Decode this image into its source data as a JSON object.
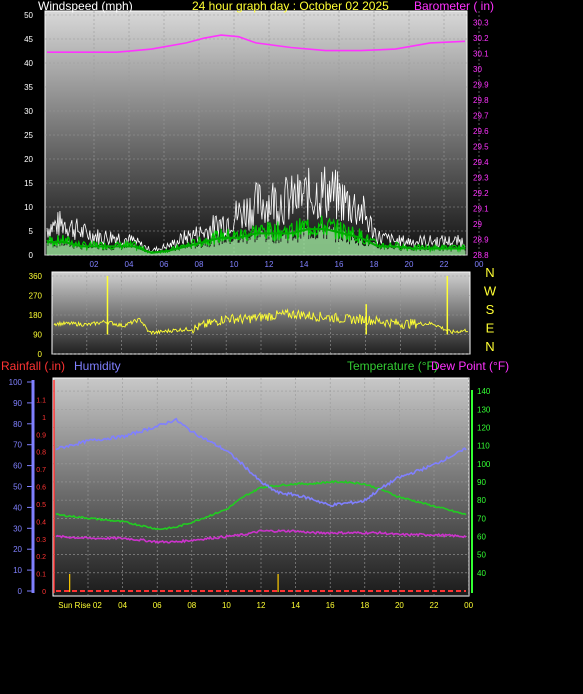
{
  "header": {
    "wind_title": "Windspeed (mph)",
    "date_title": "24 hour graph day : October 02 2025",
    "baro_title": "Barometer ( in)"
  },
  "rain_header": {
    "rain_label": "Rainfall (.in)",
    "humidity_label": "Humidity",
    "temp_label": "Temperature (°F)",
    "dew_label": "Dew Point (°F)"
  },
  "colors": {
    "background": "#000000",
    "wind": "#ffffff",
    "gust_avg": "#00c800",
    "wind_fill": "#a0e8a0",
    "barometer": "#ff33ff",
    "direction": "#ffff33",
    "humidity": "#8080ff",
    "temperature": "#22cc22",
    "dewpoint": "#cc33cc",
    "rain": "#ff3333",
    "axis_green": "#33ff33",
    "axis_blue": "#8080ff"
  },
  "chart_data": [
    {
      "type": "line",
      "name": "wind-barometer",
      "x_ticks": [
        "02",
        "04",
        "06",
        "08",
        "10",
        "12",
        "14",
        "16",
        "18",
        "20",
        "22",
        "00"
      ],
      "y_left_ticks": [
        "0",
        "5",
        "10",
        "15",
        "20",
        "25",
        "30",
        "35",
        "40",
        "45",
        "50"
      ],
      "ylim_left": [
        0,
        50
      ],
      "y_right_ticks": [
        "28.8",
        "28.9",
        "29",
        "29.1",
        "29.2",
        "29.3",
        "29.4",
        "29.5",
        "29.6",
        "29.7",
        "29.8",
        "29.9",
        "30",
        "30.1",
        "30.2",
        "30.3"
      ],
      "ylim_right": [
        28.8,
        30.35
      ],
      "barometer": [
        [
          0,
          30.11
        ],
        [
          2,
          30.11
        ],
        [
          4,
          30.11
        ],
        [
          6,
          30.13
        ],
        [
          8,
          30.17
        ],
        [
          9,
          30.2
        ],
        [
          10,
          30.22
        ],
        [
          11,
          30.21
        ],
        [
          12,
          30.17
        ],
        [
          14,
          30.14
        ],
        [
          16,
          30.12
        ],
        [
          18,
          30.12
        ],
        [
          20,
          30.13
        ],
        [
          22,
          30.17
        ],
        [
          24,
          30.18
        ]
      ],
      "wind_max": [
        [
          0,
          6
        ],
        [
          1,
          7
        ],
        [
          2,
          5
        ],
        [
          3,
          4
        ],
        [
          4,
          4
        ],
        [
          5,
          3
        ],
        [
          6,
          1
        ],
        [
          7,
          2
        ],
        [
          8,
          4
        ],
        [
          9,
          5
        ],
        [
          10,
          7
        ],
        [
          11,
          9
        ],
        [
          12,
          11
        ],
        [
          13,
          12
        ],
        [
          14,
          12
        ],
        [
          15,
          13
        ],
        [
          16,
          14
        ],
        [
          17,
          12
        ],
        [
          18,
          10
        ],
        [
          19,
          4
        ],
        [
          20,
          3
        ],
        [
          21,
          3
        ],
        [
          22,
          3
        ],
        [
          23,
          3
        ],
        [
          24,
          3
        ]
      ],
      "wind_avg": [
        [
          0,
          3
        ],
        [
          1,
          3
        ],
        [
          2,
          2
        ],
        [
          3,
          2
        ],
        [
          4,
          2
        ],
        [
          5,
          2
        ],
        [
          6,
          0.5
        ],
        [
          7,
          1
        ],
        [
          8,
          2
        ],
        [
          9,
          3
        ],
        [
          10,
          4
        ],
        [
          11,
          4
        ],
        [
          12,
          5
        ],
        [
          13,
          5
        ],
        [
          14,
          5
        ],
        [
          15,
          6
        ],
        [
          16,
          6
        ],
        [
          17,
          5
        ],
        [
          18,
          4
        ],
        [
          19,
          2
        ],
        [
          20,
          2
        ],
        [
          21,
          1.5
        ],
        [
          22,
          1.5
        ],
        [
          23,
          1.5
        ],
        [
          24,
          1.5
        ]
      ]
    },
    {
      "type": "line",
      "name": "wind-direction",
      "y_ticks": [
        "0",
        "90",
        "180",
        "270",
        "360"
      ],
      "ylim": [
        0,
        360
      ],
      "compass": [
        "N",
        "W",
        "S",
        "E",
        "N"
      ],
      "direction": [
        [
          0,
          140
        ],
        [
          1,
          140
        ],
        [
          2,
          135
        ],
        [
          3,
          150
        ],
        [
          4,
          130
        ],
        [
          5,
          160
        ],
        [
          5.5,
          100
        ],
        [
          6,
          100
        ],
        [
          7,
          110
        ],
        [
          8,
          115
        ],
        [
          9,
          140
        ],
        [
          10,
          165
        ],
        [
          11,
          160
        ],
        [
          12,
          170
        ],
        [
          13,
          180
        ],
        [
          14,
          185
        ],
        [
          15,
          175
        ],
        [
          16,
          170
        ],
        [
          17,
          160
        ],
        [
          18,
          160
        ],
        [
          19,
          150
        ],
        [
          20,
          140
        ],
        [
          21,
          140
        ],
        [
          22,
          140
        ],
        [
          23,
          100
        ],
        [
          24,
          110
        ]
      ],
      "spikes": [
        [
          3.1,
          360
        ],
        [
          18.1,
          230
        ],
        [
          22.8,
          360
        ]
      ]
    },
    {
      "type": "line",
      "name": "rain-humidity-temperature",
      "x_ticks": [
        "Sun Rise 02",
        "04",
        "06",
        "08",
        "10",
        "12",
        "14",
        "16",
        "18",
        "20",
        "22",
        "00"
      ],
      "y_humidity_ticks": [
        "0",
        "10",
        "20",
        "30",
        "40",
        "50",
        "60",
        "70",
        "80",
        "90",
        "100"
      ],
      "ylim_humidity": [
        0,
        100
      ],
      "y_rain_ticks": [
        "0",
        "0.1",
        "0.2",
        "0.3",
        "0.4",
        "0.5",
        "0.6",
        "0.7",
        "0.8",
        "0.9",
        "1",
        "1.1"
      ],
      "ylim_rain": [
        0,
        1.2
      ],
      "y_temp_ticks": [
        "40",
        "50",
        "60",
        "70",
        "80",
        "90",
        "100",
        "110",
        "120",
        "130",
        "140"
      ],
      "ylim_temp": [
        30,
        145
      ],
      "humidity": [
        [
          0,
          68
        ],
        [
          2,
          72
        ],
        [
          4,
          74
        ],
        [
          6,
          79
        ],
        [
          7,
          82
        ],
        [
          8,
          76
        ],
        [
          10,
          67
        ],
        [
          11,
          60
        ],
        [
          12,
          52
        ],
        [
          13,
          47
        ],
        [
          14,
          46
        ],
        [
          15,
          44
        ],
        [
          16,
          41
        ],
        [
          17,
          42
        ],
        [
          18,
          43
        ],
        [
          19,
          49
        ],
        [
          20,
          54
        ],
        [
          22,
          60
        ],
        [
          24,
          68
        ]
      ],
      "temperature": [
        [
          0,
          72
        ],
        [
          2,
          70
        ],
        [
          4,
          68
        ],
        [
          6,
          64
        ],
        [
          7,
          65
        ],
        [
          8,
          68
        ],
        [
          10,
          75
        ],
        [
          11,
          82
        ],
        [
          12,
          87
        ],
        [
          13,
          88
        ],
        [
          14,
          89
        ],
        [
          15,
          89
        ],
        [
          16,
          90
        ],
        [
          17,
          90
        ],
        [
          18,
          89
        ],
        [
          19,
          86
        ],
        [
          20,
          82
        ],
        [
          22,
          77
        ],
        [
          24,
          72
        ]
      ],
      "dewpoint": [
        [
          0,
          60
        ],
        [
          2,
          59
        ],
        [
          4,
          59
        ],
        [
          6,
          57
        ],
        [
          7,
          57
        ],
        [
          8,
          58
        ],
        [
          10,
          60
        ],
        [
          11,
          61
        ],
        [
          12,
          63
        ],
        [
          13,
          63
        ],
        [
          14,
          63
        ],
        [
          15,
          62
        ],
        [
          16,
          62
        ],
        [
          17,
          62
        ],
        [
          18,
          62
        ],
        [
          19,
          62
        ],
        [
          20,
          61
        ],
        [
          22,
          61
        ],
        [
          24,
          60
        ]
      ],
      "rain": [
        [
          0,
          0
        ],
        [
          24,
          0
        ]
      ],
      "events": [
        0.8,
        13.0
      ]
    }
  ]
}
